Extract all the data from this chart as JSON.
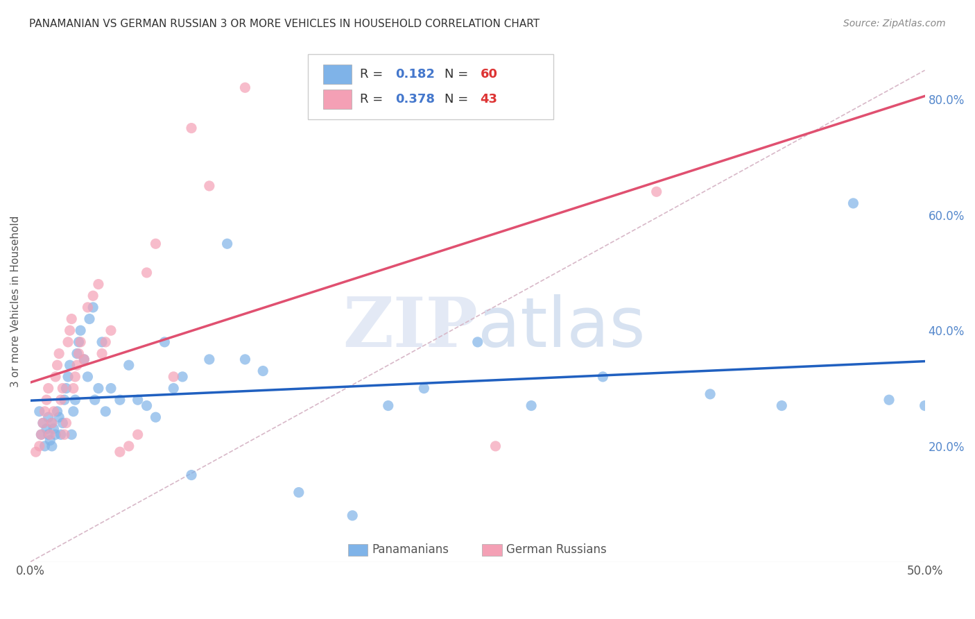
{
  "title": "PANAMANIAN VS GERMAN RUSSIAN 3 OR MORE VEHICLES IN HOUSEHOLD CORRELATION CHART",
  "source": "Source: ZipAtlas.com",
  "ylabel": "3 or more Vehicles in Household",
  "xlim": [
    0.0,
    0.5
  ],
  "ylim": [
    0.0,
    0.9
  ],
  "xticks": [
    0.0,
    0.1,
    0.2,
    0.3,
    0.4,
    0.5
  ],
  "xticklabels": [
    "0.0%",
    "",
    "",
    "",
    "",
    "50.0%"
  ],
  "yticks_right": [
    0.2,
    0.4,
    0.6,
    0.8
  ],
  "ytick_labels_right": [
    "20.0%",
    "40.0%",
    "60.0%",
    "80.0%"
  ],
  "r_blue": 0.182,
  "n_blue": 60,
  "r_pink": 0.378,
  "n_pink": 43,
  "blue_color": "#7fb3e8",
  "pink_color": "#f4a0b5",
  "blue_line_color": "#2060c0",
  "pink_line_color": "#e05070",
  "diagonal_color": "#d8b8c8",
  "background_color": "#ffffff",
  "grid_color": "#d8d8d8",
  "blue_scatter_x": [
    0.005,
    0.006,
    0.007,
    0.008,
    0.009,
    0.01,
    0.01,
    0.011,
    0.012,
    0.012,
    0.013,
    0.014,
    0.015,
    0.016,
    0.017,
    0.018,
    0.019,
    0.02,
    0.021,
    0.022,
    0.023,
    0.024,
    0.025,
    0.026,
    0.027,
    0.028,
    0.03,
    0.032,
    0.033,
    0.035,
    0.036,
    0.038,
    0.04,
    0.042,
    0.045,
    0.05,
    0.055,
    0.06,
    0.065,
    0.07,
    0.075,
    0.08,
    0.085,
    0.09,
    0.1,
    0.11,
    0.12,
    0.13,
    0.15,
    0.18,
    0.2,
    0.22,
    0.25,
    0.28,
    0.32,
    0.38,
    0.42,
    0.46,
    0.48,
    0.5
  ],
  "blue_scatter_y": [
    0.26,
    0.22,
    0.24,
    0.2,
    0.23,
    0.25,
    0.22,
    0.21,
    0.24,
    0.2,
    0.23,
    0.22,
    0.26,
    0.25,
    0.22,
    0.24,
    0.28,
    0.3,
    0.32,
    0.34,
    0.22,
    0.26,
    0.28,
    0.36,
    0.38,
    0.4,
    0.35,
    0.32,
    0.42,
    0.44,
    0.28,
    0.3,
    0.38,
    0.26,
    0.3,
    0.28,
    0.34,
    0.28,
    0.27,
    0.25,
    0.38,
    0.3,
    0.32,
    0.15,
    0.35,
    0.55,
    0.35,
    0.33,
    0.12,
    0.08,
    0.27,
    0.3,
    0.38,
    0.27,
    0.32,
    0.29,
    0.27,
    0.62,
    0.28,
    0.27
  ],
  "pink_scatter_x": [
    0.003,
    0.005,
    0.006,
    0.007,
    0.008,
    0.009,
    0.01,
    0.011,
    0.012,
    0.013,
    0.014,
    0.015,
    0.016,
    0.017,
    0.018,
    0.019,
    0.02,
    0.021,
    0.022,
    0.023,
    0.024,
    0.025,
    0.026,
    0.027,
    0.028,
    0.03,
    0.032,
    0.035,
    0.038,
    0.04,
    0.042,
    0.045,
    0.05,
    0.055,
    0.06,
    0.065,
    0.07,
    0.08,
    0.09,
    0.1,
    0.12,
    0.26,
    0.35
  ],
  "pink_scatter_y": [
    0.19,
    0.2,
    0.22,
    0.24,
    0.26,
    0.28,
    0.3,
    0.22,
    0.24,
    0.26,
    0.32,
    0.34,
    0.36,
    0.28,
    0.3,
    0.22,
    0.24,
    0.38,
    0.4,
    0.42,
    0.3,
    0.32,
    0.34,
    0.36,
    0.38,
    0.35,
    0.44,
    0.46,
    0.48,
    0.36,
    0.38,
    0.4,
    0.19,
    0.2,
    0.22,
    0.5,
    0.55,
    0.32,
    0.75,
    0.65,
    0.82,
    0.2,
    0.64
  ]
}
